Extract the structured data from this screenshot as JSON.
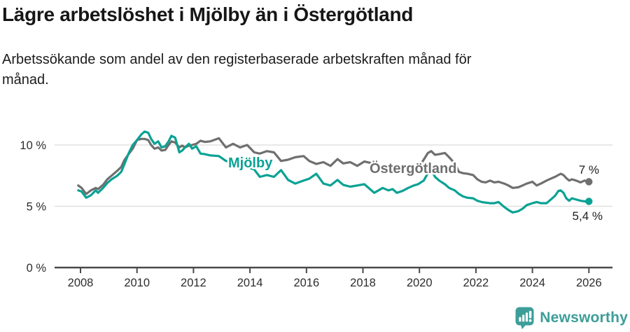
{
  "header": {
    "title": "Lägre arbetslöshet i Mjölby än i Östergötland",
    "subtitle": "Arbetssökande som andel av den registerbaserade arbetskraften månad för månad."
  },
  "chart_data": {
    "type": "line",
    "unit": "%",
    "grid": "horizontal",
    "x_axis": {
      "ticks": [
        2008,
        2010,
        2012,
        2014,
        2016,
        2018,
        2020,
        2022,
        2024,
        2026
      ]
    },
    "y_axis": {
      "ticks": [
        {
          "value": 0,
          "label": "0 %"
        },
        {
          "value": 5,
          "label": "5 %"
        },
        {
          "value": 10,
          "label": "10 %"
        }
      ],
      "range": [
        0,
        11.5
      ]
    },
    "x_range": [
      2007.9,
      2026.85
    ],
    "x": [
      2007.92,
      2008.04,
      2008.2,
      2008.37,
      2008.54,
      2008.62,
      2008.8,
      2008.95,
      2009.1,
      2009.3,
      2009.44,
      2009.55,
      2009.7,
      2009.85,
      2010.0,
      2010.15,
      2010.27,
      2010.4,
      2010.5,
      2010.62,
      2010.75,
      2010.87,
      2011.0,
      2011.12,
      2011.22,
      2011.35,
      2011.5,
      2011.6,
      2011.7,
      2011.84,
      2011.95,
      2012.1,
      2012.25,
      2012.4,
      2012.6,
      2012.9,
      2013.15,
      2013.4,
      2013.65,
      2013.9,
      2014.15,
      2014.35,
      2014.6,
      2014.85,
      2015.1,
      2015.35,
      2015.6,
      2015.9,
      2016.1,
      2016.35,
      2016.6,
      2016.85,
      2017.1,
      2017.3,
      2017.55,
      2017.8,
      2018.05,
      2018.25,
      2018.4,
      2018.55,
      2018.7,
      2018.9,
      2019.05,
      2019.2,
      2019.4,
      2019.6,
      2019.8,
      2019.95,
      2020.15,
      2020.3,
      2020.42,
      2020.55,
      2020.7,
      2020.9,
      2021.05,
      2021.25,
      2021.4,
      2021.55,
      2021.7,
      2021.9,
      2022.05,
      2022.2,
      2022.35,
      2022.5,
      2022.65,
      2022.8,
      2023.0,
      2023.15,
      2023.3,
      2023.5,
      2023.65,
      2023.8,
      2024.0,
      2024.15,
      2024.3,
      2024.5,
      2024.65,
      2024.8,
      2024.92,
      2025.0,
      2025.1,
      2025.2,
      2025.3,
      2025.4,
      2025.55,
      2025.7,
      2025.85,
      2026.0
    ],
    "series": [
      {
        "id": "mjolby",
        "name": "Mjölby",
        "color": "#0aa294",
        "end_label": "5,4 %",
        "end_value": 5.4,
        "values": [
          6.3,
          6.2,
          5.7,
          5.9,
          6.3,
          6.1,
          6.5,
          6.9,
          7.2,
          7.5,
          7.8,
          8.4,
          9.3,
          10.0,
          10.4,
          10.85,
          11.1,
          11.0,
          10.5,
          10.1,
          10.3,
          9.8,
          9.9,
          10.3,
          10.75,
          10.6,
          9.4,
          9.55,
          9.8,
          10.1,
          9.7,
          9.9,
          9.3,
          9.25,
          9.15,
          9.1,
          8.7,
          8.6,
          8.4,
          8.2,
          8.0,
          7.4,
          7.55,
          7.4,
          7.95,
          7.15,
          6.85,
          7.1,
          7.25,
          7.65,
          6.85,
          6.7,
          7.15,
          6.75,
          6.6,
          6.7,
          6.8,
          6.4,
          6.1,
          6.3,
          6.5,
          6.3,
          6.4,
          6.1,
          6.25,
          6.5,
          6.7,
          6.8,
          7.1,
          7.7,
          8.0,
          7.4,
          7.1,
          6.8,
          6.5,
          6.3,
          6.0,
          5.8,
          5.7,
          5.65,
          5.45,
          5.35,
          5.3,
          5.25,
          5.25,
          5.35,
          4.95,
          4.7,
          4.5,
          4.6,
          4.8,
          5.1,
          5.25,
          5.35,
          5.25,
          5.25,
          5.55,
          5.85,
          6.25,
          6.3,
          6.1,
          5.65,
          5.45,
          5.65,
          5.55,
          5.45,
          5.4,
          5.4
        ]
      },
      {
        "id": "ostergotland",
        "name": "Östergötland",
        "color": "#6f6f6f",
        "end_label": "7 %",
        "end_value": 7,
        "values": [
          6.7,
          6.5,
          6.0,
          6.3,
          6.5,
          6.4,
          6.75,
          7.2,
          7.5,
          7.9,
          8.2,
          8.75,
          9.25,
          9.7,
          10.4,
          10.5,
          10.5,
          10.4,
          10.0,
          9.7,
          9.8,
          9.55,
          9.6,
          10.0,
          10.3,
          10.2,
          9.8,
          9.95,
          9.8,
          9.95,
          10.0,
          10.1,
          10.35,
          10.25,
          10.3,
          10.55,
          9.8,
          10.1,
          9.8,
          10.0,
          9.4,
          9.3,
          9.5,
          9.4,
          8.7,
          8.8,
          9.0,
          9.1,
          8.7,
          8.45,
          8.6,
          8.3,
          8.85,
          8.5,
          8.6,
          8.3,
          8.65,
          8.55,
          8.4,
          8.3,
          8.2,
          8.1,
          8.0,
          7.9,
          7.95,
          8.0,
          7.85,
          8.1,
          8.8,
          9.35,
          9.5,
          9.2,
          9.25,
          9.35,
          9.0,
          8.5,
          7.8,
          7.7,
          7.65,
          7.55,
          7.2,
          7.0,
          6.95,
          7.1,
          6.95,
          7.0,
          6.85,
          6.7,
          6.5,
          6.55,
          6.7,
          6.85,
          7.0,
          6.7,
          6.85,
          7.1,
          7.25,
          7.4,
          7.55,
          7.65,
          7.55,
          7.3,
          7.1,
          7.2,
          7.1,
          6.95,
          7.1,
          7.0
        ]
      }
    ]
  },
  "footer": {
    "brand": "Newsworthy",
    "brand_color": "#3d9e99"
  }
}
